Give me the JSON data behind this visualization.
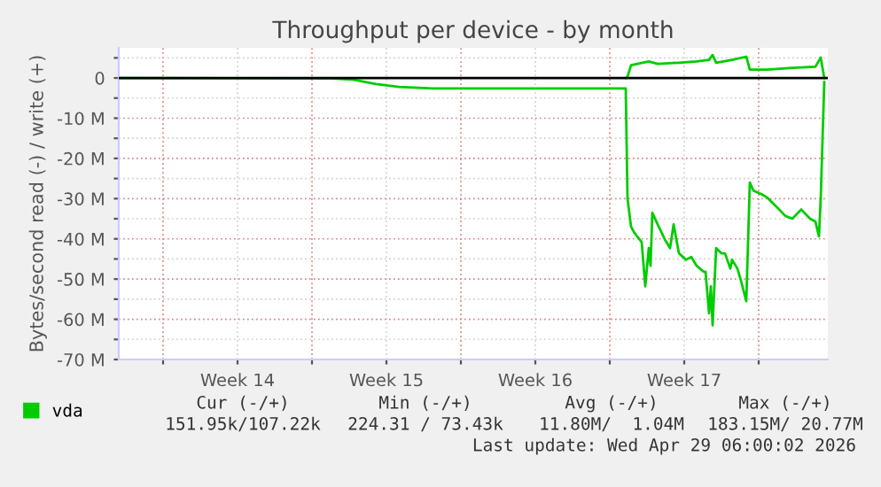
{
  "chart_data": {
    "type": "line",
    "title": "Throughput per device - by month",
    "ylabel": "Bytes/second read (-) / write (+)",
    "series": [
      {
        "name": "vda",
        "color": "#00cc00",
        "x": [
          "2026-04-20T18:00",
          "2026-04-20T20:00",
          "2026-04-21T00:00",
          "2026-04-21T20:00",
          "2026-04-22T06:00",
          "2026-04-23T06:00",
          "2026-04-24T02:00",
          "2026-04-24T16:00",
          "2026-04-24T20:00",
          "2026-04-25T00:00",
          "2026-04-25T18:00",
          "2026-04-26T10:00",
          "2026-04-26T14:00",
          "2026-04-27T10:00",
          "2026-04-28T14:00",
          "2026-04-29T16:00",
          "2026-04-29T22:00",
          "2026-04-30T02:00"
        ],
        "values": [
          0,
          300000,
          3200000,
          4100000,
          3500000,
          3800000,
          4100000,
          4500000,
          5700000,
          3800000,
          4500000,
          5300000,
          2100000,
          2100000,
          2500000,
          2800000,
          5100000,
          0
        ]
      },
      {
        "color": "#00cc00",
        "x": [
          "2026-03-27T22:00",
          "2026-04-06T22:00",
          "2026-04-07T22:00",
          "2026-04-09T00:00",
          "2026-04-10T02:00",
          "2026-04-11T16:00",
          "2026-04-20T18:00",
          "2026-04-20T20:00",
          "2026-04-21T00:00",
          "2026-04-21T04:00",
          "2026-04-21T12:00",
          "2026-04-21T16:00",
          "2026-04-21T20:00",
          "2026-04-21T22:00",
          "2026-04-22T00:00",
          "2026-04-22T06:00",
          "2026-04-22T14:00",
          "2026-04-22T20:00",
          "2026-04-23T00:00",
          "2026-04-23T06:00",
          "2026-04-23T14:00",
          "2026-04-23T20:00",
          "2026-04-24T02:00",
          "2026-04-24T10:00",
          "2026-04-24T12:00",
          "2026-04-24T16:00",
          "2026-04-24T18:00",
          "2026-04-24T20:00",
          "2026-04-25T00:00",
          "2026-04-25T06:00",
          "2026-04-25T10:00",
          "2026-04-25T16:00",
          "2026-04-25T18:00",
          "2026-04-26T00:00",
          "2026-04-26T04:00",
          "2026-04-26T10:00",
          "2026-04-26T14:00",
          "2026-04-26T18:00",
          "2026-04-27T04:00",
          "2026-04-27T10:00",
          "2026-04-27T20:00",
          "2026-04-28T06:00",
          "2026-04-28T14:00",
          "2026-04-29T00:00",
          "2026-04-29T10:00",
          "2026-04-29T16:00",
          "2026-04-29T20:00",
          "2026-04-29T22:00",
          "2026-04-30T02:00"
        ],
        "values": [
          0,
          -100000,
          -400000,
          -1500000,
          -2200000,
          -2600000,
          -2600000,
          -30000000,
          -37000000,
          -38600000,
          -40800000,
          -51800000,
          -42300000,
          -46700000,
          -33500000,
          -36400000,
          -40100000,
          -42300000,
          -36400000,
          -43600000,
          -45200000,
          -44500000,
          -46700000,
          -48200000,
          -48200000,
          -58500000,
          -51800000,
          -61500000,
          -42300000,
          -43600000,
          -43600000,
          -47400000,
          -45200000,
          -47400000,
          -50400000,
          -55500000,
          -26000000,
          -28000000,
          -29000000,
          -29800000,
          -32000000,
          -34300000,
          -35000000,
          -32700000,
          -35000000,
          -35700000,
          -39400000,
          -30000000,
          -1000000
        ]
      }
    ],
    "xlim": [
      "2026-03-27T22:00",
      "2026-04-30T06:00"
    ],
    "xticks": [
      {
        "value": "2026-03-30T00:00",
        "label": null
      },
      {
        "value": "2026-04-02T12:00",
        "label": "Week 14"
      },
      {
        "value": "2026-04-06T00:00",
        "label": null
      },
      {
        "value": "2026-04-09T12:00",
        "label": "Week 15"
      },
      {
        "value": "2026-04-13T00:00",
        "label": null
      },
      {
        "value": "2026-04-16T12:00",
        "label": "Week 16"
      },
      {
        "value": "2026-04-20T00:00",
        "label": null
      },
      {
        "value": "2026-04-23T12:00",
        "label": "Week 17"
      },
      {
        "value": "2026-04-27T00:00",
        "label": null
      }
    ],
    "ylim": [
      -70000000,
      7500000
    ],
    "yticks": [
      {
        "value": 5000000,
        "label": null
      },
      {
        "value": 0,
        "label": "0"
      },
      {
        "value": -5000000,
        "label": null
      },
      {
        "value": -10000000,
        "label": "-10 M"
      },
      {
        "value": -15000000,
        "label": null
      },
      {
        "value": -20000000,
        "label": "-20 M"
      },
      {
        "value": -25000000,
        "label": null
      },
      {
        "value": -30000000,
        "label": "-30 M"
      },
      {
        "value": -35000000,
        "label": null
      },
      {
        "value": -40000000,
        "label": "-40 M"
      },
      {
        "value": -45000000,
        "label": null
      },
      {
        "value": -50000000,
        "label": "-50 M"
      },
      {
        "value": -55000000,
        "label": null
      },
      {
        "value": -60000000,
        "label": "-60 M"
      },
      {
        "value": -65000000,
        "label": null
      },
      {
        "value": -70000000,
        "label": "-70 M"
      }
    ],
    "ref_lines": [
      {
        "axis": "y",
        "value": 0,
        "color": "#000000"
      }
    ],
    "grid": true,
    "legend": "bottom",
    "marker": "none",
    "line_style": "solid",
    "annotations": [
      "Cur (-/+)",
      "Min (-/+)",
      "Avg (-/+)",
      "Max (-/+)",
      "151.95k/107.22k",
      "224.31 / 73.43k",
      "11.80M/  1.04M",
      "183.15M/ 20.77M",
      "Last update: Wed Apr 29 06:00:02 2026"
    ]
  }
}
